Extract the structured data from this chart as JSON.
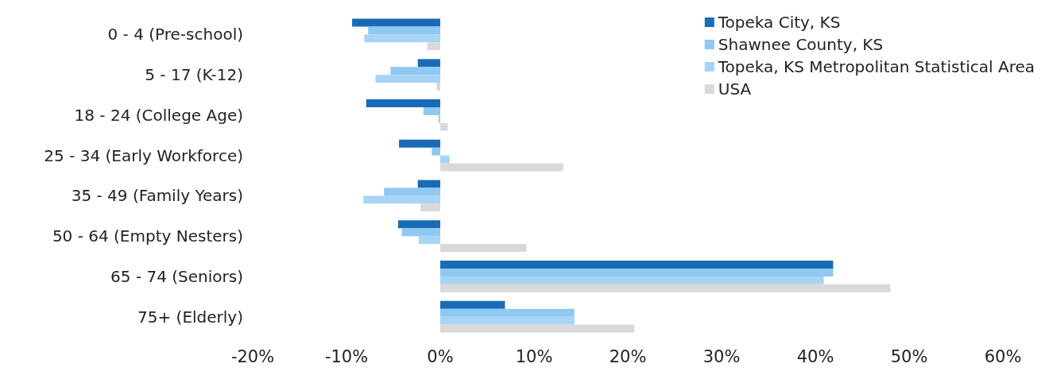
{
  "chart_data": {
    "type": "bar",
    "orientation": "horizontal",
    "categories": [
      "0 - 4 (Pre-school)",
      "5 - 17 (K-12)",
      "18 - 24 (College Age)",
      "25 - 34 (Early Workforce)",
      "35 - 49 (Family Years)",
      "50 - 64 (Empty Nesters)",
      "65 - 74 (Seniors)",
      "75+ (Elderly)"
    ],
    "series": [
      {
        "name": "Topeka City, KS",
        "color": "#1a6bb5",
        "values": [
          -9.4,
          -2.4,
          -7.9,
          -4.4,
          -2.4,
          -4.5,
          41.9,
          6.9
        ]
      },
      {
        "name": "Shawnee County, KS",
        "color": "#8fc8f0",
        "values": [
          -7.7,
          -5.3,
          -1.8,
          -0.9,
          -6.0,
          -4.1,
          41.9,
          14.3
        ]
      },
      {
        "name": "Topeka, KS Metropolitan Statistical Area",
        "color": "#a6d4f5",
        "values": [
          -8.1,
          -6.9,
          -0.2,
          1.0,
          -8.2,
          -2.3,
          40.9,
          14.3
        ]
      },
      {
        "name": "USA",
        "color": "#d9d9d9",
        "values": [
          -1.4,
          -0.4,
          0.8,
          13.1,
          -2.1,
          9.2,
          48.0,
          20.7
        ]
      }
    ],
    "xlim": [
      -20,
      60
    ],
    "xticks": [
      {
        "value": -20,
        "label": "-20%"
      },
      {
        "value": -10,
        "label": "-10%"
      },
      {
        "value": 0,
        "label": "0%"
      },
      {
        "value": 10,
        "label": "10%"
      },
      {
        "value": 20,
        "label": "20%"
      },
      {
        "value": 30,
        "label": "30%"
      },
      {
        "value": 40,
        "label": "40%"
      },
      {
        "value": 50,
        "label": "50%"
      },
      {
        "value": 60,
        "label": "60%"
      }
    ],
    "grid": false,
    "legend": "top right"
  }
}
